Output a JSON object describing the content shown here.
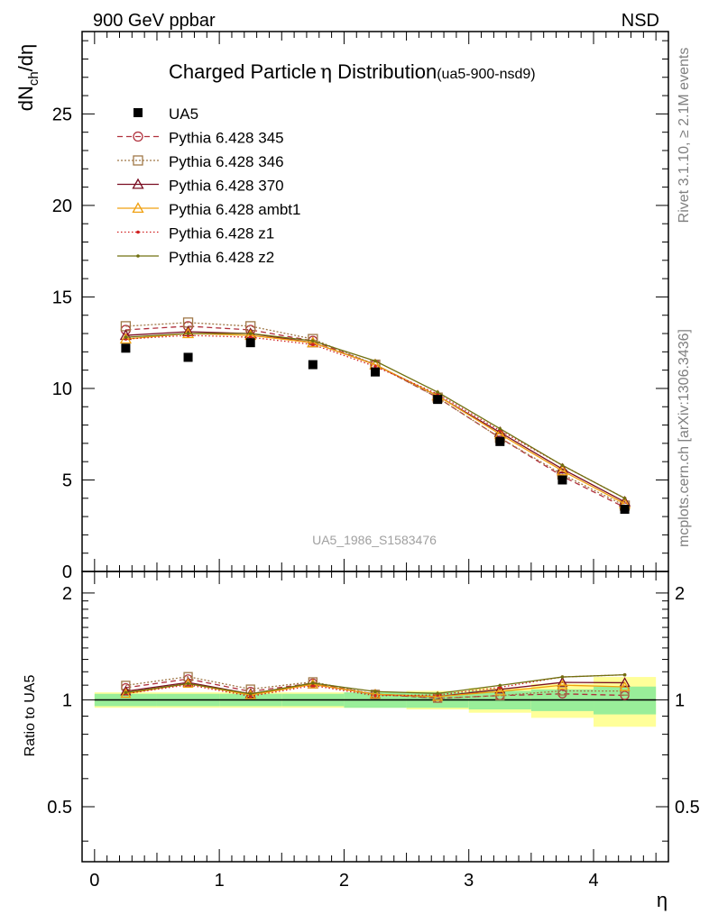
{
  "header": {
    "energy": "900 GeV ppbar",
    "process": "NSD"
  },
  "side": {
    "rivet": "Rivet 3.1.10, ≥ 2.1M events",
    "mcplots": "mcplots.cern.ch [arXiv:1306.3436]"
  },
  "chart_data": {
    "type": "line",
    "title": "Charged Particle",
    "title_eta": "η",
    "title_rest": " Distribution",
    "title_sub": "(ua5-900-nsd9)",
    "ylabel": "dN_ch/dη",
    "ylabel_main": "dN",
    "ylabel_sub": "ch",
    "ylabel_tail": "/dη",
    "ratio_ylabel": "Ratio to UA5",
    "xlabel": "η",
    "watermark": "UA5_1986_S1583476",
    "xlim": [
      -0.1,
      4.6
    ],
    "ylim": [
      0,
      29.5
    ],
    "ratio_ylim": [
      0.35,
      2.3
    ],
    "legend_position": "top-left",
    "x_ticks": [
      "0",
      "1",
      "2",
      "3",
      "4"
    ],
    "y_ticks": [
      "0",
      "5",
      "10",
      "15",
      "20",
      "25"
    ],
    "ratio_ticks": [
      "0.5",
      "1",
      "2"
    ],
    "x": [
      0.25,
      0.75,
      1.25,
      1.75,
      2.25,
      2.75,
      3.25,
      3.75,
      4.25
    ],
    "data": {
      "name": "UA5",
      "values": [
        12.2,
        11.7,
        12.5,
        11.3,
        10.9,
        9.4,
        7.1,
        5.0,
        3.4
      ],
      "stat_band": [
        0.04,
        0.04,
        0.04,
        0.04,
        0.05,
        0.05,
        0.06,
        0.07,
        0.09
      ],
      "total_band": [
        0.05,
        0.05,
        0.05,
        0.05,
        0.05,
        0.06,
        0.08,
        0.11,
        0.16
      ]
    },
    "series": [
      {
        "name": "Pythia 6.428 345",
        "color": "#b0303c",
        "dash": "6,4",
        "marker": "circle",
        "values": [
          13.2,
          13.4,
          13.2,
          12.6,
          11.3,
          9.5,
          7.3,
          5.2,
          3.5
        ]
      },
      {
        "name": "Pythia 6.428 346",
        "color": "#a07848",
        "dash": "2,2",
        "marker": "square",
        "values": [
          13.4,
          13.6,
          13.4,
          12.7,
          11.3,
          9.5,
          7.3,
          5.3,
          3.6
        ]
      },
      {
        "name": "Pythia 6.428 370",
        "color": "#7a0e22",
        "dash": "",
        "marker": "triangle",
        "values": [
          12.9,
          13.1,
          13.0,
          12.5,
          11.3,
          9.6,
          7.6,
          5.6,
          3.8
        ]
      },
      {
        "name": "Pythia 6.428 ambt1",
        "color": "#f0a010",
        "dash": "",
        "marker": "triangle",
        "values": [
          12.7,
          13.0,
          12.9,
          12.5,
          11.3,
          9.6,
          7.5,
          5.5,
          3.7
        ]
      },
      {
        "name": "Pythia 6.428 z1",
        "color": "#d02020",
        "dash": "1.5,2.5",
        "marker": "dot",
        "values": [
          12.7,
          12.9,
          12.8,
          12.4,
          11.2,
          9.7,
          7.7,
          5.8,
          4.0
        ]
      },
      {
        "name": "Pythia 6.428 z2",
        "color": "#707010",
        "dash": "",
        "marker": "dot",
        "values": [
          12.8,
          13.0,
          13.0,
          12.6,
          11.5,
          9.8,
          7.8,
          5.8,
          4.0
        ]
      }
    ]
  }
}
